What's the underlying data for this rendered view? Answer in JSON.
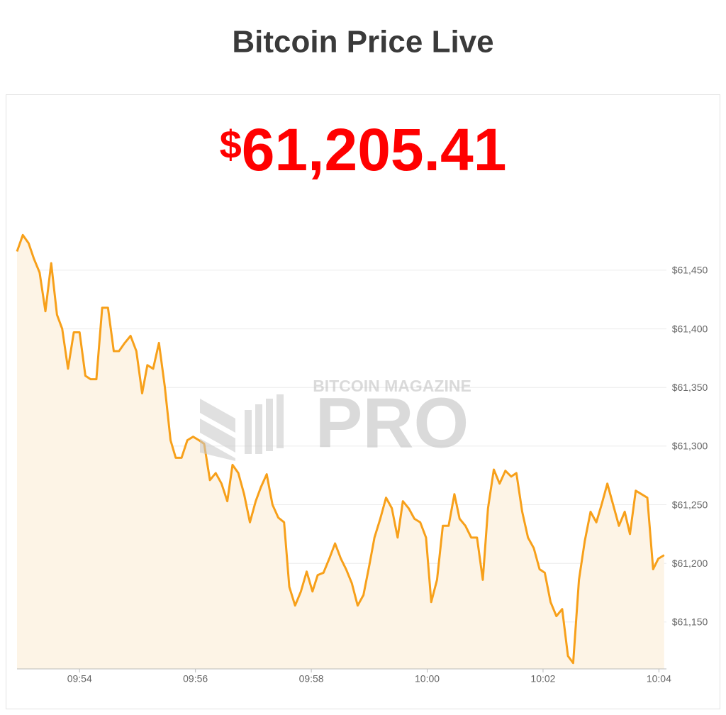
{
  "title": "Bitcoin Price Live",
  "price": {
    "currency": "$",
    "amount": "61,205.41"
  },
  "watermark": {
    "brand": "BITCOIN MAGAZINE",
    "product": "PRO"
  },
  "chart_data": {
    "type": "area-line",
    "color": "#f7a01a",
    "fill": "#fdf4e6",
    "grid": true,
    "x": [
      592.92,
      593.02,
      593.12,
      593.21,
      593.31,
      593.41,
      593.51,
      593.61,
      593.7,
      593.8,
      593.9,
      594.0,
      594.1,
      594.19,
      594.29,
      594.39,
      594.49,
      594.59,
      594.68,
      594.78,
      594.88,
      594.98,
      595.08,
      595.17,
      595.27,
      595.37,
      595.47,
      595.57,
      595.66,
      595.76,
      595.86,
      595.96,
      596.06,
      596.15,
      596.25,
      596.35,
      596.45,
      596.55,
      596.64,
      596.74,
      596.84,
      596.94,
      597.04,
      597.13,
      597.23,
      597.33,
      597.43,
      597.53,
      597.62,
      597.72,
      597.82,
      597.92,
      598.02,
      598.11,
      598.21,
      598.31,
      598.41,
      598.51,
      598.6,
      598.7,
      598.8,
      598.9,
      599.0,
      599.09,
      599.19,
      599.29,
      599.39,
      599.49,
      599.58,
      599.68,
      599.78,
      599.88,
      599.98,
      600.07,
      600.17,
      600.27,
      600.37,
      600.47,
      600.56,
      600.66,
      600.76,
      600.86,
      600.96,
      601.05,
      601.15,
      601.25,
      601.35,
      601.45,
      601.54,
      601.64,
      601.74,
      601.84,
      601.94,
      602.03,
      602.13,
      602.23,
      602.33,
      602.43,
      602.52,
      602.62,
      602.72,
      602.82,
      602.92,
      603.01,
      603.11,
      603.21,
      603.31,
      603.41,
      603.5,
      603.6,
      603.7,
      603.8,
      603.9,
      603.99,
      604.09
    ],
    "values": [
      61466,
      61480,
      61473,
      61460,
      61448,
      61415,
      61456,
      61412,
      61400,
      61366,
      61397,
      61397,
      61360,
      61357,
      61357,
      61418,
      61418,
      61381,
      61381,
      61388,
      61394,
      61381,
      61345,
      61369,
      61366,
      61388,
      61351,
      61305,
      61290,
      61290,
      61305,
      61308,
      61305,
      61302,
      61271,
      61277,
      61268,
      61253,
      61284,
      61277,
      61259,
      61235,
      61253,
      61265,
      61276,
      61250,
      61239,
      61235,
      61180,
      61164,
      61176,
      61193,
      61176,
      61190,
      61192,
      61204,
      61217,
      61204,
      61195,
      61183,
      61164,
      61173,
      61198,
      61222,
      61238,
      61256,
      61247,
      61222,
      61253,
      61247,
      61238,
      61235,
      61222,
      61167,
      61186,
      61232,
      61232,
      61259,
      61238,
      61232,
      61222,
      61222,
      61186,
      61247,
      61280,
      61268,
      61279,
      61274,
      61277,
      61244,
      61222,
      61213,
      61195,
      61192,
      61167,
      61155,
      61161,
      61121,
      61115,
      61186,
      61219,
      61244,
      61235,
      61250,
      61268,
      61250,
      61232,
      61244,
      61225,
      61262,
      61259,
      61256,
      61195,
      61204,
      61207
    ],
    "xlim": [
      592.92,
      604.13
    ],
    "xticks": [
      {
        "value": 594,
        "label": "09:54"
      },
      {
        "value": 596,
        "label": "09:56"
      },
      {
        "value": 598,
        "label": "09:58"
      },
      {
        "value": 600,
        "label": "10:00"
      },
      {
        "value": 602,
        "label": "10:02"
      },
      {
        "value": 604,
        "label": "10:04"
      }
    ],
    "ylim": [
      61110,
      61505
    ],
    "yticks": [
      {
        "value": 61150,
        "label": "$61,150"
      },
      {
        "value": 61200,
        "label": "$61,200"
      },
      {
        "value": 61250,
        "label": "$61,250"
      },
      {
        "value": 61300,
        "label": "$61,300"
      },
      {
        "value": 61350,
        "label": "$61,350"
      },
      {
        "value": 61400,
        "label": "$61,400"
      },
      {
        "value": 61450,
        "label": "$61,450"
      }
    ]
  }
}
